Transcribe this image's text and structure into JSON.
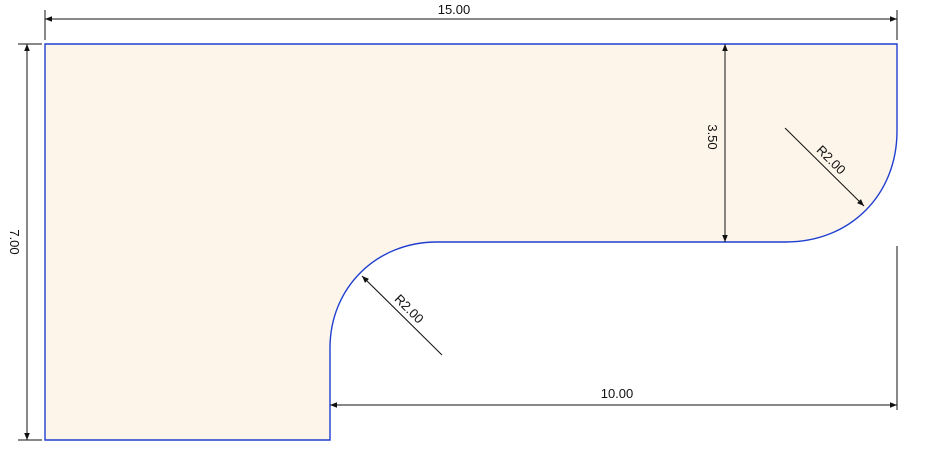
{
  "drawing": {
    "colors": {
      "shape_fill": "#fdf5ea",
      "shape_outline": "#1f3fd1",
      "dimension_line": "#111111",
      "background": "#ffffff"
    },
    "dimensions": {
      "overall_width": "15.00",
      "overall_height": "7.00",
      "upper_depth": "3.50",
      "lower_width": "10.00",
      "upper_radius": "R2.00",
      "lower_radius": "R2.00"
    }
  }
}
